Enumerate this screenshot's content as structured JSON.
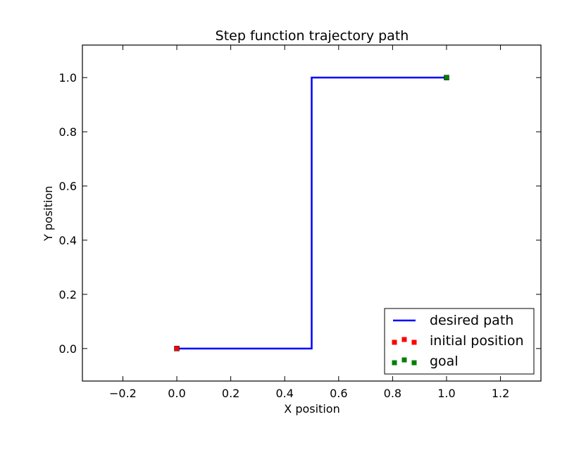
{
  "chart_data": {
    "type": "line",
    "title": "Step function trajectory path",
    "xlabel": "X position",
    "ylabel": "Y position",
    "xlim": [
      -0.35,
      1.35
    ],
    "ylim": [
      -0.12,
      1.12
    ],
    "x_ticks": [
      -0.2,
      0.0,
      0.2,
      0.4,
      0.6,
      0.8,
      1.0,
      1.2
    ],
    "x_tick_labels": [
      "−0.2",
      "0.0",
      "0.2",
      "0.4",
      "0.6",
      "0.8",
      "1.0",
      "1.2"
    ],
    "y_ticks": [
      0.0,
      0.2,
      0.4,
      0.6,
      0.8,
      1.0
    ],
    "y_tick_labels": [
      "0.0",
      "0.2",
      "0.4",
      "0.6",
      "0.8",
      "1.0"
    ],
    "grid": false,
    "legend_position": "bottom-right",
    "series": [
      {
        "name": "desired path",
        "kind": "line",
        "color": "#0000ff",
        "x": [
          0.0,
          0.5,
          0.5,
          1.0
        ],
        "y": [
          0.0,
          0.0,
          1.0,
          1.0
        ]
      },
      {
        "name": "initial position",
        "kind": "scatter",
        "marker": "square",
        "color": "#ff0000",
        "x": [
          0.0
        ],
        "y": [
          0.0
        ]
      },
      {
        "name": "goal",
        "kind": "scatter",
        "marker": "square",
        "color": "#008000",
        "x": [
          1.0
        ],
        "y": [
          1.0
        ]
      }
    ]
  }
}
